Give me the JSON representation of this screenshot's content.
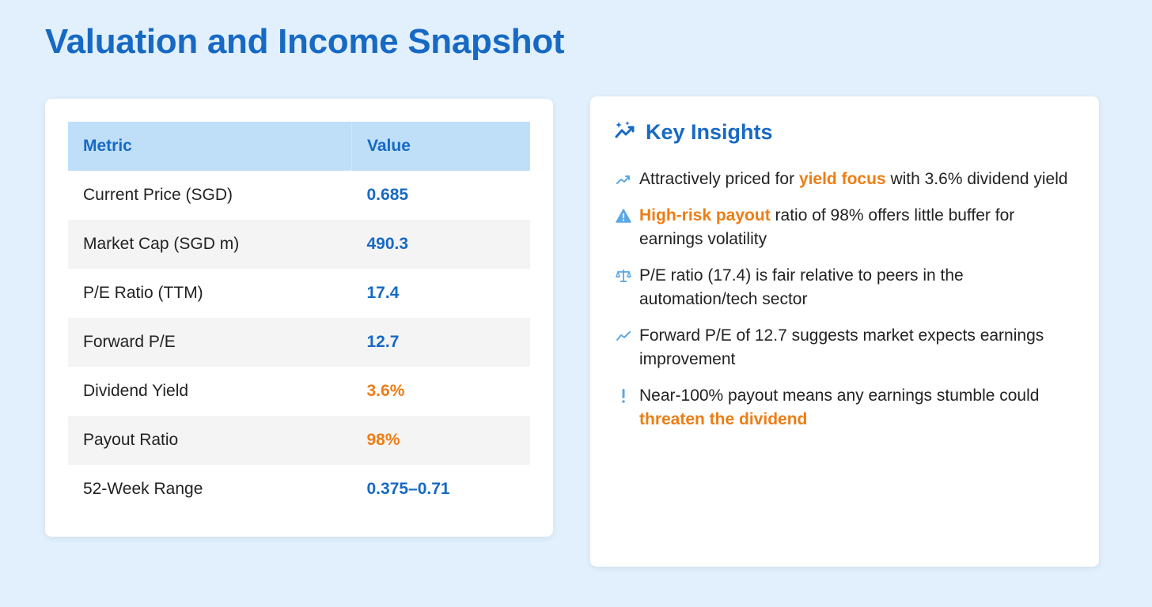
{
  "title": "Valuation and Income Snapshot",
  "colors": {
    "primary": "#1769c4",
    "accent": "#ed7d14",
    "header_bg": "#bfdff8",
    "page_bg": "#e1f0fc",
    "icon_blue": "#5aa8e6"
  },
  "table": {
    "headers": {
      "metric": "Metric",
      "value": "Value"
    },
    "rows": [
      {
        "metric": "Current Price (SGD)",
        "value": "0.685",
        "tone": "primary"
      },
      {
        "metric": "Market Cap (SGD m)",
        "value": "490.3",
        "tone": "primary"
      },
      {
        "metric": "P/E Ratio (TTM)",
        "value": "17.4",
        "tone": "primary"
      },
      {
        "metric": "Forward P/E",
        "value": "12.7",
        "tone": "primary"
      },
      {
        "metric": "Dividend Yield",
        "value": "3.6%",
        "tone": "accent"
      },
      {
        "metric": "Payout Ratio",
        "value": "98%",
        "tone": "accent"
      },
      {
        "metric": "52-Week Range",
        "value": "0.375–0.71",
        "tone": "primary"
      }
    ]
  },
  "insights": {
    "title": "Key Insights",
    "icon": "chart-sparkle-icon",
    "items": [
      {
        "icon": "trend-up-icon",
        "parts": [
          {
            "text": "Attractively priced for "
          },
          {
            "text": "yield focus",
            "highlight": true
          },
          {
            "text": " with 3.6% dividend yield"
          }
        ]
      },
      {
        "icon": "warning-icon",
        "parts": [
          {
            "text": "High-risk payout",
            "highlight": true
          },
          {
            "text": " ratio of 98% offers little buffer for earnings volatility"
          }
        ]
      },
      {
        "icon": "scale-icon",
        "parts": [
          {
            "text": "P/E ratio (17.4) is fair relative to peers in the automation/tech sector"
          }
        ]
      },
      {
        "icon": "trend-line-icon",
        "parts": [
          {
            "text": "Forward P/E of 12.7 suggests market expects earnings improvement"
          }
        ]
      },
      {
        "icon": "exclamation-icon",
        "parts": [
          {
            "text": "Near-100% payout means any earnings stumble could "
          },
          {
            "text": "threaten the dividend",
            "highlight": true
          }
        ]
      }
    ]
  }
}
